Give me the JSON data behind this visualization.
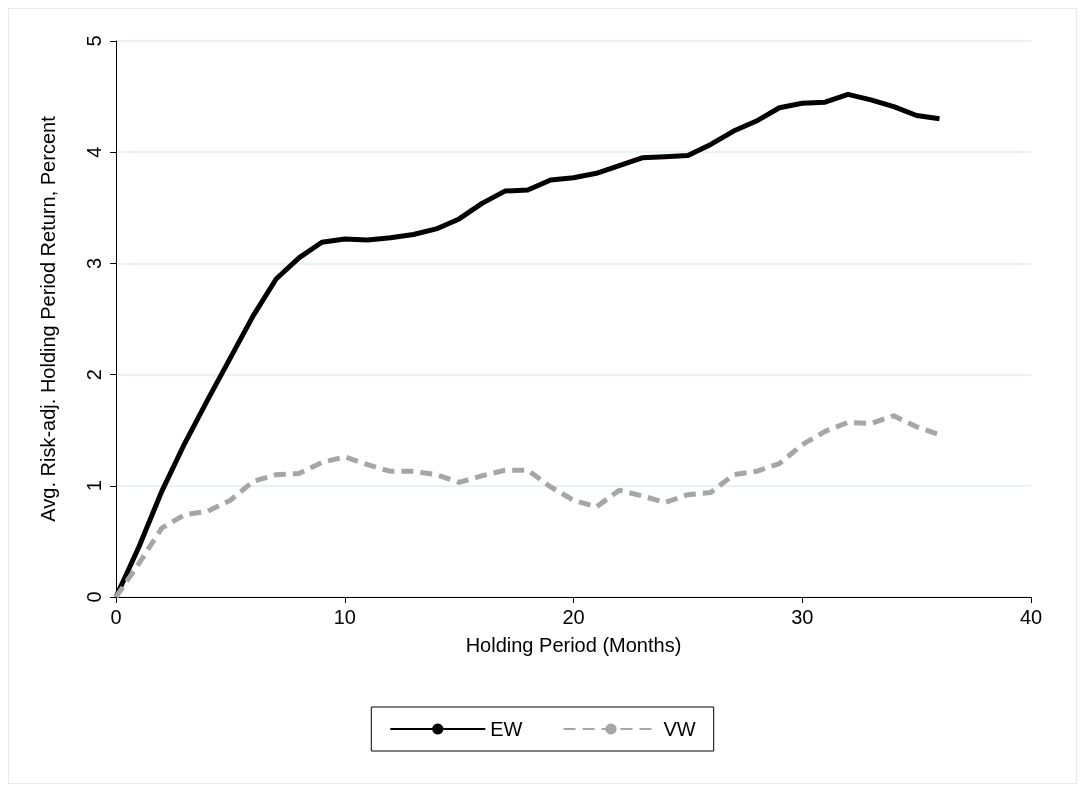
{
  "chart_data": {
    "type": "line",
    "xlabel": "Holding Period (Months)",
    "ylabel": "Avg. Risk-adj. Holding Period Return, Percent",
    "x": [
      0,
      1,
      2,
      3,
      4,
      5,
      6,
      7,
      8,
      9,
      10,
      11,
      12,
      13,
      14,
      15,
      16,
      17,
      18,
      19,
      20,
      21,
      22,
      23,
      24,
      25,
      26,
      27,
      28,
      29,
      30,
      31,
      32,
      33,
      34,
      35,
      36
    ],
    "series": [
      {
        "name": "EW",
        "color": "#000000",
        "line_style": "solid",
        "values": [
          0,
          0.45,
          0.95,
          1.38,
          1.77,
          2.15,
          2.53,
          2.86,
          3.05,
          3.19,
          3.22,
          3.21,
          3.23,
          3.26,
          3.31,
          3.4,
          3.54,
          3.65,
          3.66,
          3.75,
          3.77,
          3.81,
          3.88,
          3.95,
          3.96,
          3.97,
          4.07,
          4.19,
          4.28,
          4.4,
          4.44,
          4.45,
          4.52,
          4.47,
          4.41,
          4.33,
          4.3
        ]
      },
      {
        "name": "VW",
        "color": "#a6a6a6",
        "line_style": "dashed",
        "values": [
          0,
          0.3,
          0.62,
          0.74,
          0.77,
          0.87,
          1.04,
          1.1,
          1.11,
          1.21,
          1.26,
          1.19,
          1.13,
          1.13,
          1.1,
          1.03,
          1.09,
          1.14,
          1.14,
          0.99,
          0.87,
          0.81,
          0.96,
          0.91,
          0.85,
          0.92,
          0.94,
          1.1,
          1.13,
          1.2,
          1.37,
          1.49,
          1.57,
          1.56,
          1.63,
          1.53,
          1.46
        ]
      }
    ],
    "xlim": [
      0,
      40
    ],
    "xticks": [
      0,
      10,
      20,
      30,
      40
    ],
    "ylim": [
      0,
      5
    ],
    "yticks": [
      0,
      1,
      2,
      3,
      4,
      5
    ],
    "grid": "y",
    "legend": "bottom",
    "marker": "none"
  }
}
